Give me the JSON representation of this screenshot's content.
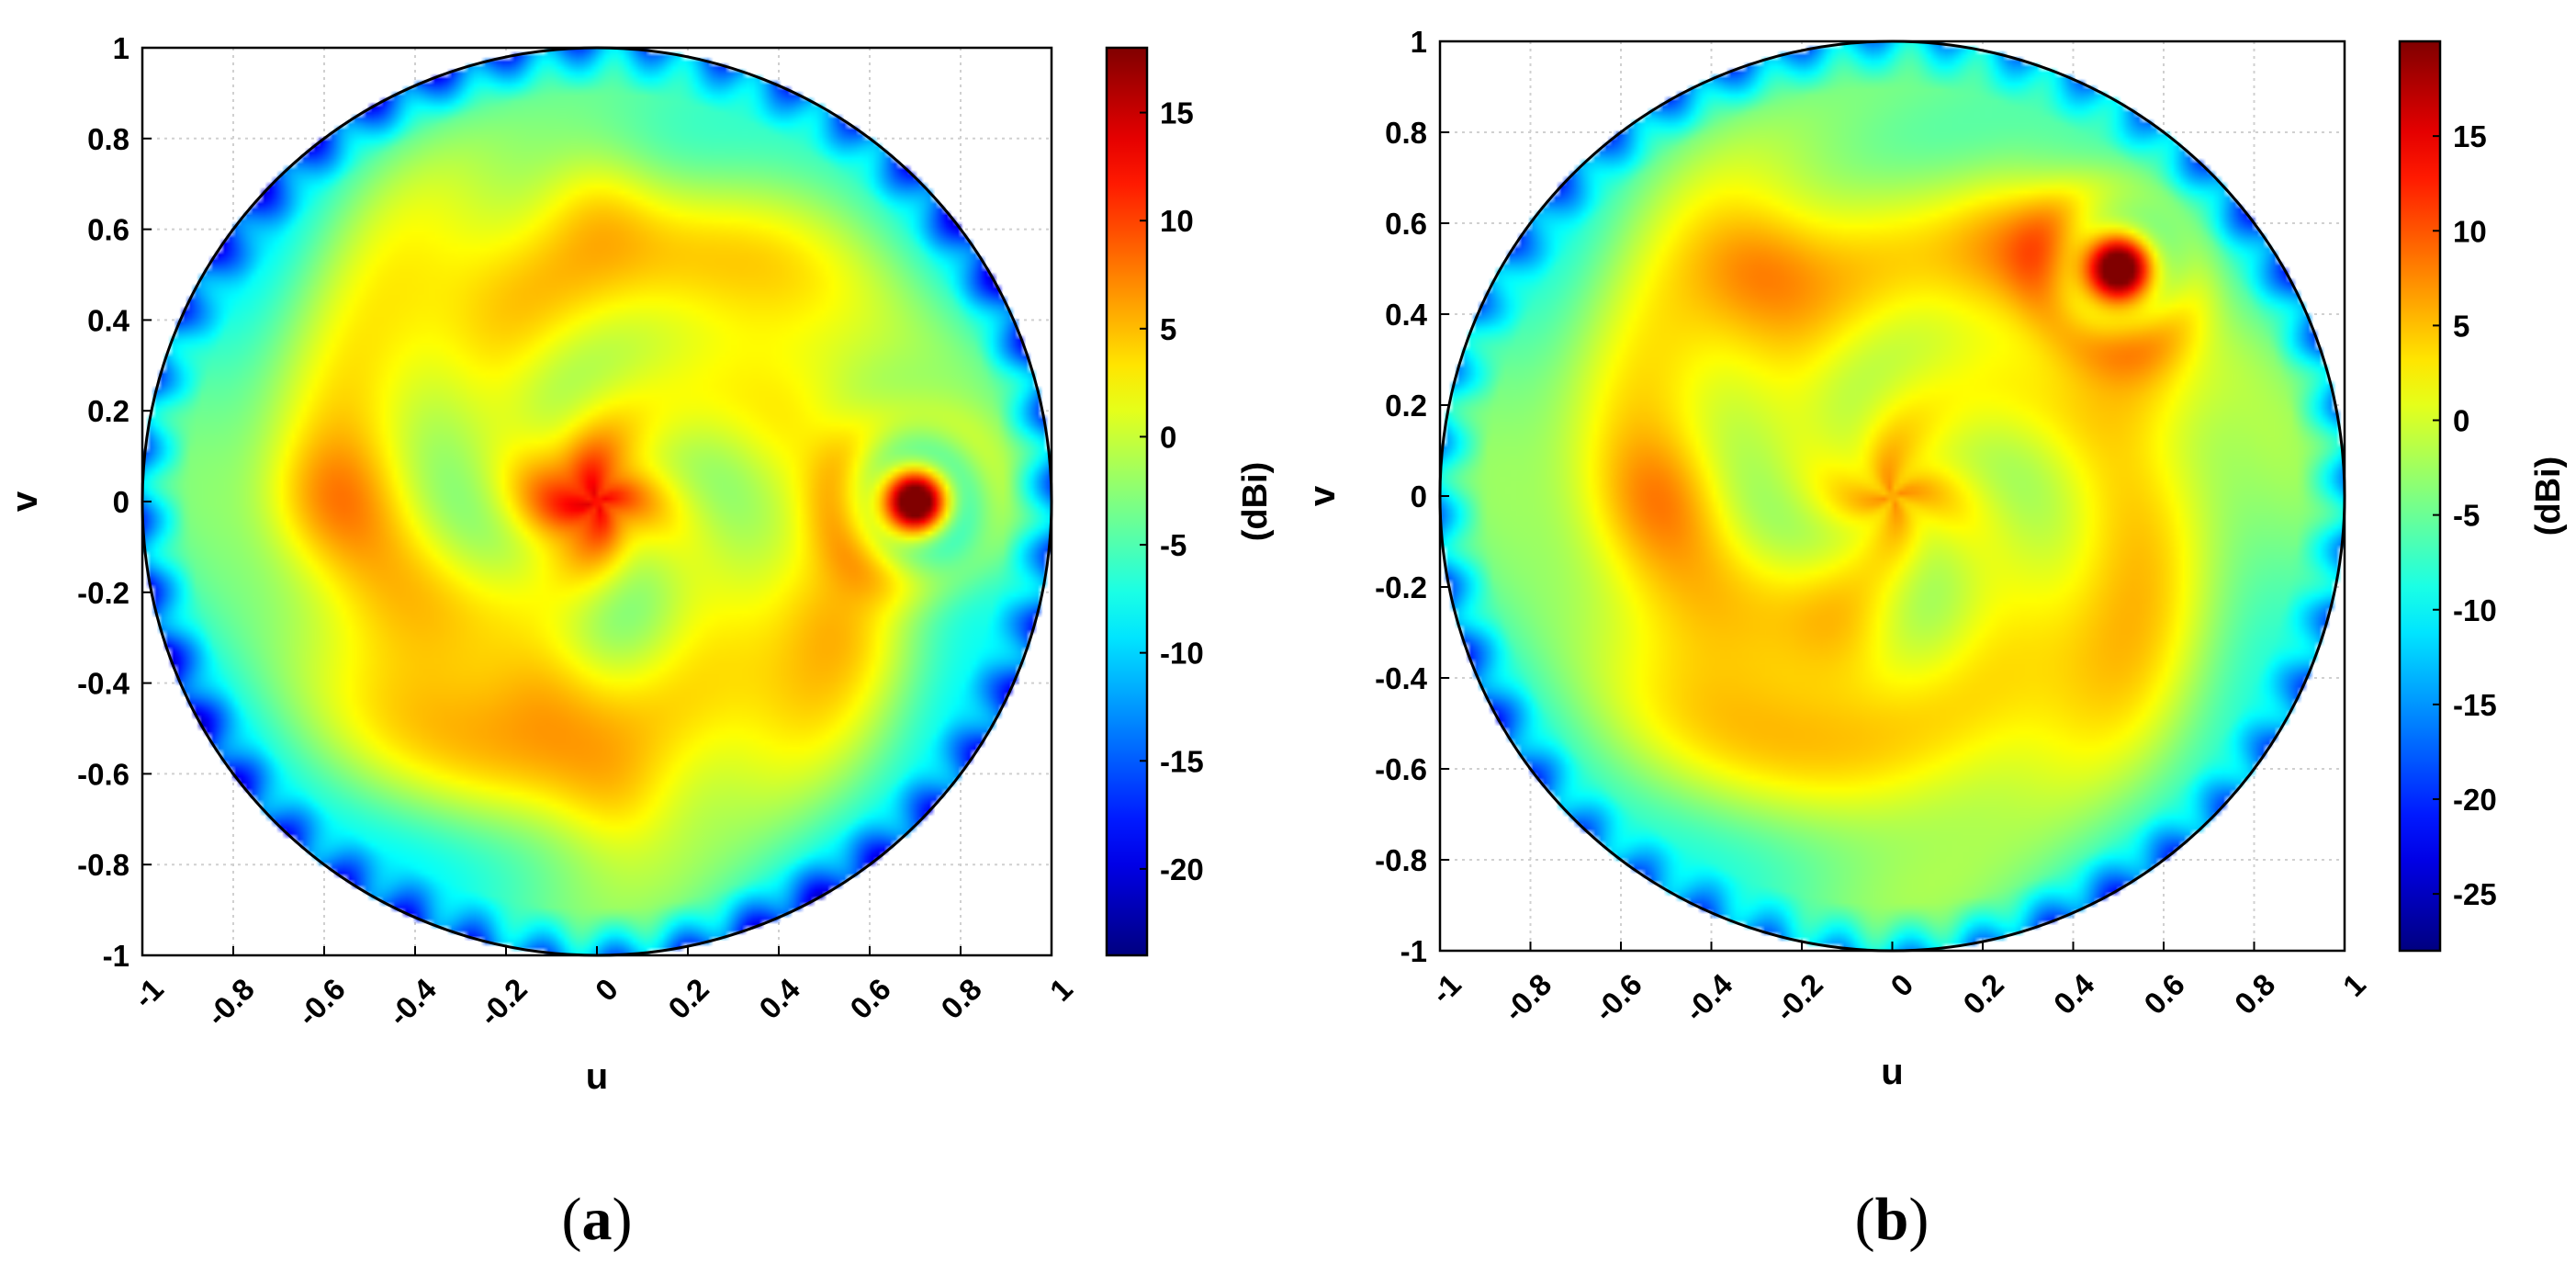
{
  "chart_data": [
    {
      "type": "heatmap",
      "panel_label": "a",
      "xlabel": "u",
      "ylabel": "v",
      "xlim": [
        -1,
        1
      ],
      "ylim": [
        -1,
        1
      ],
      "x_ticks": [
        "-1",
        "-0.8",
        "-0.6",
        "-0.4",
        "-0.2",
        "0",
        "0.2",
        "0.4",
        "0.6",
        "0.8",
        "1"
      ],
      "y_ticks": [
        "1",
        "0.8",
        "0.6",
        "0.4",
        "0.2",
        "0",
        "-0.2",
        "-0.4",
        "-0.6",
        "-0.8",
        "-1"
      ],
      "grid": true,
      "domain_shape": "unit circle",
      "colorbar": {
        "label": "(dBi)",
        "range": [
          -24,
          18
        ],
        "ticks": [
          "15",
          "10",
          "5",
          "0",
          "-5",
          "-10",
          "-15",
          "-20"
        ],
        "colormap": "jet"
      },
      "main_beam": {
        "u": 0.7,
        "v": 0.0,
        "peak_dBi": 18
      },
      "features": [
        {
          "u": -0.05,
          "v": 0.0,
          "level_dBi": 9
        },
        {
          "u": 0.0,
          "v": 0.68,
          "level_dBi": 7
        },
        {
          "u": -0.1,
          "v": -0.38,
          "level_dBi": 7
        },
        {
          "u": -0.6,
          "v": 0.0,
          "level_dBi": 6
        },
        {
          "u": 0.05,
          "v": -0.68,
          "level_dBi": 6
        }
      ]
    },
    {
      "type": "heatmap",
      "panel_label": "b",
      "xlabel": "u",
      "ylabel": "v",
      "xlim": [
        -1,
        1
      ],
      "ylim": [
        -1,
        1
      ],
      "x_ticks": [
        "-1",
        "-0.8",
        "-0.6",
        "-0.4",
        "-0.2",
        "0",
        "0.2",
        "0.4",
        "0.6",
        "0.8",
        "1"
      ],
      "y_ticks": [
        "1",
        "0.8",
        "0.6",
        "0.4",
        "0.2",
        "0",
        "-0.2",
        "-0.4",
        "-0.6",
        "-0.8",
        "-1"
      ],
      "grid": true,
      "domain_shape": "unit circle",
      "colorbar": {
        "label": "(dBi)",
        "range": [
          -28,
          20
        ],
        "ticks": [
          "15",
          "10",
          "5",
          "0",
          "-5",
          "-10",
          "-15",
          "-20",
          "-25"
        ],
        "colormap": "jet"
      },
      "main_beam": {
        "u": 0.5,
        "v": 0.5,
        "peak_dBi": 20
      },
      "features": [
        {
          "u": -0.1,
          "v": -0.3,
          "level_dBi": 8
        },
        {
          "u": -0.3,
          "v": 0.5,
          "level_dBi": 7
        },
        {
          "u": 0.3,
          "v": 0.55,
          "level_dBi": 7
        },
        {
          "u": -0.5,
          "v": 0.0,
          "level_dBi": 6
        },
        {
          "u": 0.55,
          "v": 0.3,
          "level_dBi": 8
        }
      ]
    }
  ],
  "captions": [
    "a",
    "b"
  ]
}
